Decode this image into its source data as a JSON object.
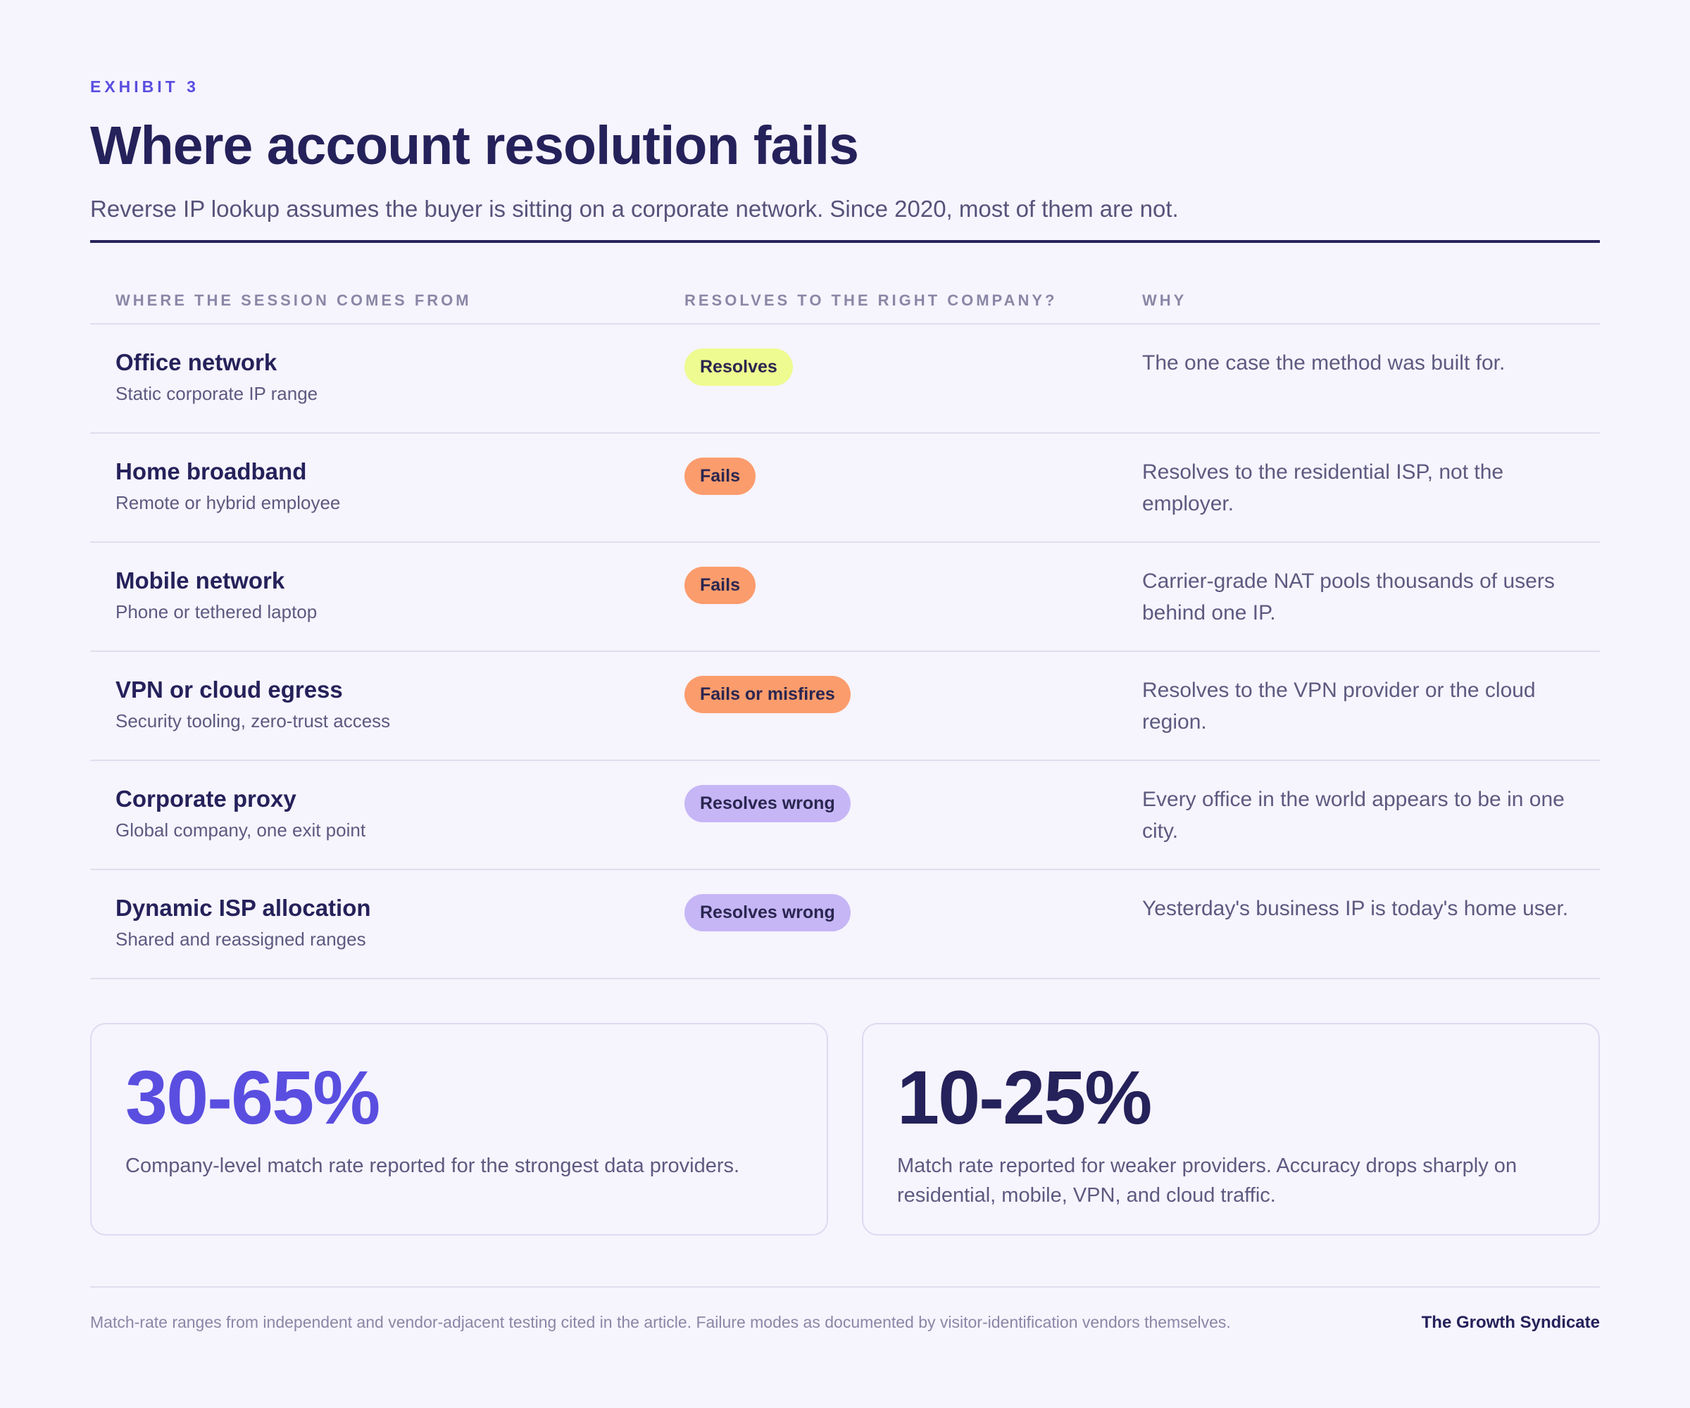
{
  "header": {
    "eyebrow": "EXHIBIT 3",
    "title": "Where account resolution fails",
    "subtitle": "Reverse IP lookup assumes the buyer is sitting on a corporate network. Since 2020, most of them are not."
  },
  "table": {
    "columns": [
      "WHERE THE SESSION COMES FROM",
      "RESOLVES TO THE RIGHT COMPANY?",
      "WHY"
    ],
    "rows": [
      {
        "source": "Office network",
        "detail": "Static corporate IP range",
        "status": "Resolves",
        "why": "The one case the method was built for."
      },
      {
        "source": "Home broadband",
        "detail": "Remote or hybrid employee",
        "status": "Fails",
        "why": "Resolves to the residential ISP, not the employer."
      },
      {
        "source": "Mobile network",
        "detail": "Phone or tethered laptop",
        "status": "Fails",
        "why": "Carrier-grade NAT pools thousands of users behind one IP."
      },
      {
        "source": "VPN or cloud egress",
        "detail": "Security tooling, zero-trust access",
        "status": "Fails or misfires",
        "why": "Resolves to the VPN provider or the cloud region."
      },
      {
        "source": "Corporate proxy",
        "detail": "Global company, one exit point",
        "status": "Resolves wrong",
        "why": "Every office in the world appears to be in one city."
      },
      {
        "source": "Dynamic ISP allocation",
        "detail": "Shared and reassigned ranges",
        "status": "Resolves wrong",
        "why": "Yesterday's business IP is today's home user."
      }
    ]
  },
  "stats": [
    {
      "value": "30-65%",
      "text": "Company-level match rate reported for the strongest data providers."
    },
    {
      "value": "10-25%",
      "text": "Match rate reported for weaker providers. Accuracy drops sharply on residential, mobile, VPN, and cloud traffic."
    }
  ],
  "footer": {
    "note": "Match-rate ranges from independent and vendor-adjacent testing cited in the article. Failure modes as documented by visitor-identification vendors themselves.",
    "brand": "The Growth Syndicate"
  },
  "colors": {
    "accent": "#5a4ee0",
    "ink": "#25215a",
    "badge_resolves": "#eefb90",
    "badge_fails": "#fb9c6c",
    "badge_wrong": "#c6b6f6",
    "background": "#f6f4fd"
  }
}
